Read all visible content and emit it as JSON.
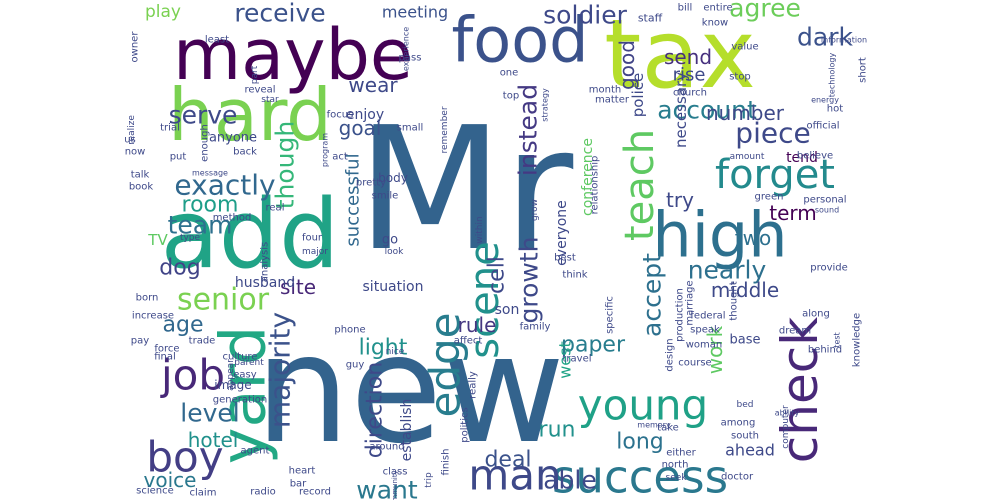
{
  "word_cloud": {
    "words": [
      {
        "text": "new",
        "color": "#33638d"
      },
      {
        "text": "Mr",
        "color": "#33638d"
      },
      {
        "text": "add",
        "color": "#20a386"
      },
      {
        "text": "tax",
        "color": "#b5de2b"
      },
      {
        "text": "maybe",
        "color": "#440154"
      },
      {
        "text": "hard",
        "color": "#7ad151"
      },
      {
        "text": "yard",
        "color": "#22a884"
      },
      {
        "text": "food",
        "color": "#3b528b"
      },
      {
        "text": "high",
        "color": "#2d708e"
      },
      {
        "text": "check",
        "color": "#482878"
      },
      {
        "text": "success",
        "color": "#2a788e"
      },
      {
        "text": "man",
        "color": "#3e4989"
      },
      {
        "text": "boy",
        "color": "#433e85"
      },
      {
        "text": "job",
        "color": "#482878"
      },
      {
        "text": "edge",
        "color": "#287d8e"
      },
      {
        "text": "young",
        "color": "#1fa187"
      },
      {
        "text": "scene",
        "color": "#21918c"
      },
      {
        "text": "teach",
        "color": "#5ec962"
      },
      {
        "text": "forget",
        "color": "#238a8d"
      },
      {
        "text": "senior",
        "color": "#7ad151"
      },
      {
        "text": "exactly",
        "color": "#31688e"
      },
      {
        "text": "majority",
        "color": "#3b528b"
      },
      {
        "text": "piece",
        "color": "#3e4989"
      },
      {
        "text": "receive",
        "color": "#3b528b"
      },
      {
        "text": "soldier",
        "color": "#3e4989"
      },
      {
        "text": "agree",
        "color": "#6ccd5a"
      },
      {
        "text": "dark",
        "color": "#3b528b"
      },
      {
        "text": "account",
        "color": "#287d8e"
      },
      {
        "text": "though",
        "color": "#35b779"
      },
      {
        "text": "instead",
        "color": "#443983"
      },
      {
        "text": "growth",
        "color": "#3e4989"
      },
      {
        "text": "accept",
        "color": "#2d708e"
      },
      {
        "text": "nearly",
        "color": "#2d708e"
      },
      {
        "text": "able",
        "color": "#3e4989"
      },
      {
        "text": "want",
        "color": "#2a788e"
      },
      {
        "text": "level",
        "color": "#31688e"
      },
      {
        "text": "serve",
        "color": "#3e4989"
      },
      {
        "text": "team",
        "color": "#2d708e"
      },
      {
        "text": "room",
        "color": "#1f9e89"
      },
      {
        "text": "dog",
        "color": "#414487"
      },
      {
        "text": "age",
        "color": "#31688e"
      },
      {
        "text": "hotel",
        "color": "#21918c"
      },
      {
        "text": "voice",
        "color": "#2a788e"
      },
      {
        "text": "deal",
        "color": "#3b528b"
      },
      {
        "text": "paper",
        "color": "#287d8e"
      },
      {
        "text": "light",
        "color": "#21918c"
      },
      {
        "text": "direction",
        "color": "#3e4989"
      },
      {
        "text": "run",
        "color": "#21918c"
      },
      {
        "text": "long",
        "color": "#2c728e"
      },
      {
        "text": "term",
        "color": "#440154"
      },
      {
        "text": "work",
        "color": "#5ec962"
      },
      {
        "text": "number",
        "color": "#3e4989"
      },
      {
        "text": "two",
        "color": "#2d708e"
      },
      {
        "text": "cell",
        "color": "#3e4989"
      },
      {
        "text": "rule",
        "color": "#453781"
      },
      {
        "text": "site",
        "color": "#482878"
      },
      {
        "text": "middle",
        "color": "#3e4989"
      },
      {
        "text": "successful",
        "color": "#31688e"
      },
      {
        "text": "goal",
        "color": "#3b528b"
      },
      {
        "text": "try",
        "color": "#3e4989"
      },
      {
        "text": "tend",
        "color": "#440154"
      },
      {
        "text": "good",
        "color": "#414487"
      },
      {
        "text": "send",
        "color": "#46307e"
      },
      {
        "text": "rise",
        "color": "#3e4989"
      },
      {
        "text": "wear",
        "color": "#3e4989"
      },
      {
        "text": "play",
        "color": "#7ad151"
      },
      {
        "text": "meeting",
        "color": "#3b528b"
      },
      {
        "text": "west",
        "color": "#20a386"
      },
      {
        "text": "ahead",
        "color": "#3e4989"
      },
      {
        "text": "husband",
        "color": "#3e4989"
      },
      {
        "text": "situation",
        "color": "#3e4989"
      },
      {
        "text": "son",
        "color": "#3e4989"
      },
      {
        "text": "everyone",
        "color": "#3e4989"
      },
      {
        "text": "conference",
        "color": "#5ec962"
      },
      {
        "text": "police",
        "color": "#3e4989"
      },
      {
        "text": "necessary",
        "color": "#3e4989"
      },
      {
        "text": "TV",
        "color": "#5ec962"
      },
      {
        "text": "enjoy",
        "color": "#3e4989"
      },
      {
        "text": "anyone",
        "color": "#3e4989"
      },
      {
        "text": "establish",
        "color": "#3e4989"
      },
      {
        "text": "base",
        "color": "#3e4989"
      },
      {
        "text": "go",
        "color": "#3e4989"
      },
      {
        "text": "body",
        "color": "#3e4989"
      },
      {
        "text": "staff",
        "color": "#3e4989"
      },
      {
        "text": "bill",
        "color": "#3e4989"
      },
      {
        "text": "entire",
        "color": "#3e4989"
      },
      {
        "text": "know",
        "color": "#3e4989"
      },
      {
        "text": "value",
        "color": "#3e4989"
      },
      {
        "text": "stop",
        "color": "#3e4989"
      },
      {
        "text": "church",
        "color": "#3e4989"
      },
      {
        "text": "short",
        "color": "#3e4989"
      },
      {
        "text": "hot",
        "color": "#3e4989"
      },
      {
        "text": "energy",
        "color": "#3e4989"
      },
      {
        "text": "official",
        "color": "#3e4989"
      },
      {
        "text": "believe",
        "color": "#3e4989"
      },
      {
        "text": "personal",
        "color": "#3e4989"
      },
      {
        "text": "green",
        "color": "#3e4989"
      },
      {
        "text": "thought",
        "color": "#3e4989"
      },
      {
        "text": "provide",
        "color": "#3e4989"
      },
      {
        "text": "federal",
        "color": "#3e4989"
      },
      {
        "text": "along",
        "color": "#3e4989"
      },
      {
        "text": "speak",
        "color": "#3e4989"
      },
      {
        "text": "dream",
        "color": "#3e4989"
      },
      {
        "text": "woman",
        "color": "#3e4989"
      },
      {
        "text": "behind",
        "color": "#3e4989"
      },
      {
        "text": "knowledge",
        "color": "#3e4989"
      },
      {
        "text": "test",
        "color": "#3e4989"
      },
      {
        "text": "computer",
        "color": "#3e4989"
      },
      {
        "text": "doctor",
        "color": "#3e4989"
      },
      {
        "text": "south",
        "color": "#3e4989"
      },
      {
        "text": "north",
        "color": "#3e4989"
      },
      {
        "text": "among",
        "color": "#3e4989"
      },
      {
        "text": "bed",
        "color": "#3e4989"
      },
      {
        "text": "take",
        "color": "#3e4989"
      },
      {
        "text": "design",
        "color": "#3e4989"
      },
      {
        "text": "production",
        "color": "#3e4989"
      },
      {
        "text": "marriage",
        "color": "#3e4989"
      },
      {
        "text": "relationship",
        "color": "#3e4989"
      },
      {
        "text": "best",
        "color": "#3e4989"
      },
      {
        "text": "think",
        "color": "#3e4989"
      },
      {
        "text": "travel",
        "color": "#3e4989"
      },
      {
        "text": "family",
        "color": "#3e4989"
      },
      {
        "text": "affect",
        "color": "#3e4989"
      },
      {
        "text": "really",
        "color": "#3e4989"
      },
      {
        "text": "politics",
        "color": "#3e4989"
      },
      {
        "text": "finish",
        "color": "#3e4989"
      },
      {
        "text": "around",
        "color": "#3e4989"
      },
      {
        "text": "class",
        "color": "#3e4989"
      },
      {
        "text": "trip",
        "color": "#3e4989"
      },
      {
        "text": "record",
        "color": "#3e4989"
      },
      {
        "text": "radio",
        "color": "#3e4989"
      },
      {
        "text": "claim",
        "color": "#3e4989"
      },
      {
        "text": "science",
        "color": "#3e4989"
      },
      {
        "text": "bar",
        "color": "#3e4989"
      },
      {
        "text": "heart",
        "color": "#3e4989"
      },
      {
        "text": "agent",
        "color": "#3e4989"
      },
      {
        "text": "generation",
        "color": "#3e4989"
      },
      {
        "text": "easy",
        "color": "#3e4989"
      },
      {
        "text": "culture",
        "color": "#3e4989"
      },
      {
        "text": "parent",
        "color": "#3e4989"
      },
      {
        "text": "appear",
        "color": "#3e4989"
      },
      {
        "text": "trade",
        "color": "#3e4989"
      },
      {
        "text": "final",
        "color": "#3e4989"
      },
      {
        "text": "pay",
        "color": "#3e4989"
      },
      {
        "text": "force",
        "color": "#3e4989"
      },
      {
        "text": "increase",
        "color": "#3e4989"
      },
      {
        "text": "born",
        "color": "#3e4989"
      },
      {
        "text": "analysis",
        "color": "#3e4989"
      },
      {
        "text": "image",
        "color": "#3e4989"
      },
      {
        "text": "phone",
        "color": "#3e4989"
      },
      {
        "text": "guy",
        "color": "#3e4989"
      },
      {
        "text": "nice",
        "color": "#3e4989"
      },
      {
        "text": "four",
        "color": "#3e4989"
      },
      {
        "text": "major",
        "color": "#3e4989"
      },
      {
        "text": "look",
        "color": "#3e4989"
      },
      {
        "text": "method",
        "color": "#3e4989"
      },
      {
        "text": "real",
        "color": "#3e4989"
      },
      {
        "text": "type",
        "color": "#3e4989"
      },
      {
        "text": "book",
        "color": "#3e4989"
      },
      {
        "text": "talk",
        "color": "#3e4989"
      },
      {
        "text": "message",
        "color": "#3e4989"
      },
      {
        "text": "now",
        "color": "#3e4989"
      },
      {
        "text": "us",
        "color": "#3e4989"
      },
      {
        "text": "trial",
        "color": "#3e4989"
      },
      {
        "text": "realize",
        "color": "#3e4989"
      },
      {
        "text": "put",
        "color": "#3e4989"
      },
      {
        "text": "enough",
        "color": "#3e4989"
      },
      {
        "text": "back",
        "color": "#3e4989"
      },
      {
        "text": "focus",
        "color": "#3e4989"
      },
      {
        "text": "act",
        "color": "#3e4989"
      },
      {
        "text": "program",
        "color": "#3e4989"
      },
      {
        "text": "pretty",
        "color": "#3e4989"
      },
      {
        "text": "smile",
        "color": "#3e4989"
      },
      {
        "text": "small",
        "color": "#3e4989"
      },
      {
        "text": "remember",
        "color": "#3e4989"
      },
      {
        "text": "strategy",
        "color": "#3e4989"
      },
      {
        "text": "grow",
        "color": "#3e4989"
      },
      {
        "text": "within",
        "color": "#3e4989"
      },
      {
        "text": "part",
        "color": "#3e4989"
      },
      {
        "text": "reveal",
        "color": "#3e4989"
      },
      {
        "text": "star",
        "color": "#3e4989"
      },
      {
        "text": "least",
        "color": "#3e4989"
      },
      {
        "text": "owner",
        "color": "#3e4989"
      },
      {
        "text": "experience",
        "color": "#3e4989"
      },
      {
        "text": "pass",
        "color": "#3e4989"
      },
      {
        "text": "one",
        "color": "#3e4989"
      },
      {
        "text": "top",
        "color": "#3e4989"
      },
      {
        "text": "month",
        "color": "#3e4989"
      },
      {
        "text": "matter",
        "color": "#3e4989"
      },
      {
        "text": "course",
        "color": "#3e4989"
      },
      {
        "text": "information",
        "color": "#3e4989"
      },
      {
        "text": "technology",
        "color": "#3e4989"
      },
      {
        "text": "amount",
        "color": "#3e4989"
      },
      {
        "text": "specific",
        "color": "#3e4989"
      },
      {
        "text": "seek",
        "color": "#3e4989"
      },
      {
        "text": "memory",
        "color": "#3e4989"
      },
      {
        "text": "ability",
        "color": "#3e4989"
      },
      {
        "text": "either",
        "color": "#3e4989"
      },
      {
        "text": "community",
        "color": "#3e4989"
      },
      {
        "text": "sound",
        "color": "#3e4989"
      }
    ]
  }
}
